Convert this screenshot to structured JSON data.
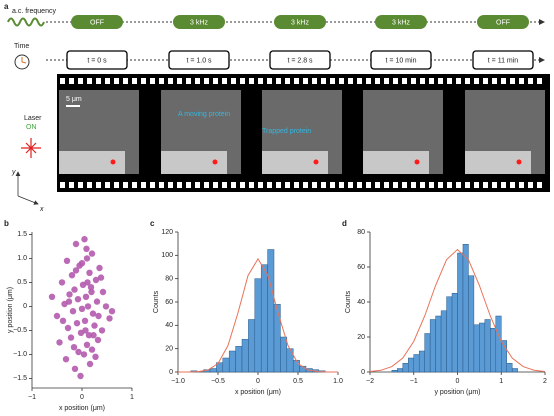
{
  "figure_a": {
    "label": "a",
    "frequency_label": "a.c. frequency",
    "states": [
      "OFF",
      "3 kHz",
      "3 kHz",
      "3 kHz",
      "OFF"
    ],
    "time_label": "Time",
    "times": [
      "t = 0 s",
      "t = 1.0 s",
      "t = 2.8 s",
      "t = 10 min",
      "t = 11 min"
    ],
    "laser_label": "Laser",
    "laser_state": "ON",
    "scale_bar": "5 μm",
    "y_axis": "y",
    "x_axis": "x",
    "annotations": [
      "A moving protein",
      "Trapped protein"
    ]
  },
  "chart_data": [
    {
      "type": "scatter",
      "panel": "b",
      "xlabel": "x position (μm)",
      "ylabel": "y position (μm)",
      "color": "#b45aae",
      "xlim": [
        -1,
        1
      ],
      "ylim": [
        -1.7,
        1.55
      ],
      "xticks": [
        {
          "value": -1,
          "label": "−1"
        },
        0,
        1
      ],
      "yticks": [
        {
          "value": -1.5,
          "label": "−1.5"
        },
        {
          "value": -1,
          "label": "−1.0"
        },
        {
          "value": -0.5,
          "label": "−0.5"
        },
        0,
        0.5,
        {
          "value": 1,
          "label": "1.0"
        },
        1.5
      ],
      "x": [
        0.05,
        -0.12,
        0.2,
        -0.3,
        0.1,
        0.35,
        -0.05,
        0.15,
        -0.2,
        0.28,
        -0.4,
        0.02,
        0.18,
        -0.15,
        0.42,
        -0.25,
        0.08,
        -0.08,
        0.3,
        -0.35,
        0.12,
        0.0,
        -0.18,
        0.22,
        -0.5,
        0.55,
        0.06,
        -0.1,
        0.25,
        -0.28,
        0.4,
        -0.02,
        0.14,
        -0.22,
        0.32,
        -0.45,
        0.1,
        0.6,
        -0.6,
        0.2,
        -0.07,
        0.04,
        0.27,
        -0.32,
        0.16,
        -0.14,
        0.38,
        -0.38,
        0.09,
        0.48,
        -0.12,
        0.23,
        -0.03,
        0.11,
        -0.26,
        0.33,
        0.0,
        -0.16,
        0.19,
        0.07
      ],
      "values": [
        1.4,
        1.3,
        1.1,
        0.95,
        1.0,
        0.8,
        0.85,
        0.7,
        0.65,
        0.55,
        0.5,
        0.45,
        0.4,
        0.35,
        0.3,
        0.25,
        0.2,
        0.15,
        0.1,
        0.05,
        0.0,
        -0.05,
        -0.1,
        -0.15,
        -0.2,
        -0.25,
        -0.3,
        -0.35,
        -0.4,
        -0.45,
        -0.5,
        -0.55,
        -0.6,
        -0.65,
        -0.7,
        -0.75,
        -0.8,
        -0.1,
        0.2,
        -0.9,
        -0.95,
        -1.0,
        -1.05,
        -1.1,
        -1.2,
        -1.3,
        0.6,
        -0.3,
        1.2,
        0.0,
        0.75,
        -0.6,
        -1.45,
        0.5,
        0.1,
        -0.2,
        0.9,
        -0.85,
        0.3,
        -0.5
      ]
    },
    {
      "type": "histogram",
      "panel": "c",
      "xlabel": "x position (μm)",
      "ylabel": "Counts",
      "color": "#5b9bd5",
      "xlim": [
        -1,
        1
      ],
      "ylim": [
        0,
        120
      ],
      "xticks": [
        {
          "value": -1,
          "label": "−1.0"
        },
        {
          "value": -0.5,
          "label": "−0.5"
        },
        0,
        0.5,
        {
          "value": 1,
          "label": "1.0"
        }
      ],
      "yticks": [
        0,
        20,
        40,
        60,
        80,
        100,
        120
      ],
      "bins": [
        -0.84,
        -0.76,
        -0.68,
        -0.6,
        -0.52,
        -0.44,
        -0.36,
        -0.28,
        -0.2,
        -0.12,
        -0.04,
        0.04,
        0.12,
        0.2,
        0.28,
        0.36,
        0.44,
        0.52,
        0.6,
        0.68,
        0.76,
        0.84
      ],
      "values": [
        1,
        0,
        2,
        3,
        8,
        12,
        18,
        22,
        28,
        45,
        80,
        92,
        105,
        58,
        30,
        20,
        10,
        5,
        3,
        2,
        1
      ],
      "fit": {
        "color": "#e8735a",
        "x": [
          -1,
          -0.875,
          -0.75,
          -0.625,
          -0.5,
          -0.375,
          -0.25,
          -0.125,
          0,
          0.125,
          0.25,
          0.375,
          0.5,
          0.625,
          0.75,
          0.875,
          1
        ],
        "values": [
          0,
          0.04,
          0.3,
          1.7,
          7.3,
          22.7,
          50.8,
          82.6,
          97,
          82.6,
          50.8,
          22.7,
          7.3,
          1.7,
          0.3,
          0.04,
          0
        ]
      }
    },
    {
      "type": "histogram",
      "panel": "d",
      "xlabel": "y position (μm)",
      "ylabel": "Counts",
      "color": "#5b9bd5",
      "xlim": [
        -2,
        2
      ],
      "ylim": [
        0,
        80
      ],
      "xticks": [
        {
          "value": -2,
          "label": "−2"
        },
        {
          "value": -1,
          "label": "−1"
        },
        0,
        1,
        2
      ],
      "yticks": [
        0,
        20,
        40,
        60,
        80
      ],
      "bins": [
        -1.5,
        -1.375,
        -1.25,
        -1.125,
        -1,
        -0.875,
        -0.75,
        -0.625,
        -0.5,
        -0.375,
        -0.25,
        -0.125,
        0,
        0.125,
        0.25,
        0.375,
        0.5,
        0.625,
        0.75,
        0.875,
        1,
        1.125,
        1.25,
        1.375
      ],
      "values": [
        1,
        2,
        5,
        8,
        10,
        12,
        22,
        30,
        32,
        35,
        43,
        45,
        68,
        73,
        55,
        27,
        28,
        30,
        25,
        32,
        18,
        5,
        2
      ],
      "fit": {
        "color": "#e8735a",
        "x": [
          -2,
          -1.75,
          -1.5,
          -1.25,
          -1,
          -0.75,
          -0.5,
          -0.25,
          0,
          0.25,
          0.5,
          0.75,
          1,
          1.25,
          1.5,
          1.75,
          2
        ],
        "values": [
          0.3,
          1.0,
          3.1,
          8.0,
          17.5,
          32.0,
          49.5,
          64.2,
          70,
          64.2,
          49.5,
          32.0,
          17.5,
          8.0,
          3.1,
          1.0,
          0.3
        ]
      }
    }
  ]
}
